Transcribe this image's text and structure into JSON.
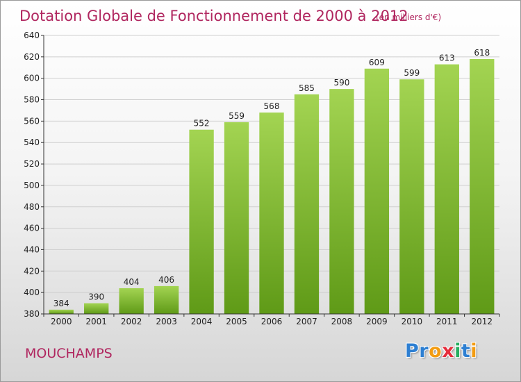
{
  "chart_data": {
    "type": "bar",
    "title": "Dotation Globale de Fonctionnement de 2000 à 2012",
    "subtitle": "(en milliers d'€)",
    "categories": [
      "2000",
      "2001",
      "2002",
      "2003",
      "2004",
      "2005",
      "2006",
      "2007",
      "2008",
      "2009",
      "2010",
      "2011",
      "2012"
    ],
    "values": [
      384,
      390,
      404,
      406,
      552,
      559,
      568,
      585,
      590,
      609,
      599,
      613,
      618
    ],
    "ylim": [
      380,
      640
    ],
    "yticks": [
      380,
      400,
      420,
      440,
      460,
      480,
      500,
      520,
      540,
      560,
      580,
      600,
      620,
      640
    ],
    "grid": true,
    "bar_color_top": "#a3d452",
    "bar_color_bottom": "#5f9a17"
  },
  "commune": "MOUCHAMPS",
  "logo": {
    "text": "Proxiti",
    "letters": [
      {
        "ch": "P",
        "color": "#2d7fd2"
      },
      {
        "ch": "r",
        "color": "#2d7fd2"
      },
      {
        "ch": "o",
        "color": "#f39c12"
      },
      {
        "ch": "x",
        "color": "#e52d3c"
      },
      {
        "ch": "i",
        "color": "#27ae60"
      },
      {
        "ch": "t",
        "color": "#2d7fd2"
      },
      {
        "ch": "i",
        "color": "#f39c12"
      }
    ]
  },
  "colors": {
    "title": "#b0265f",
    "axis": "#333333",
    "grid": "#cfcfcf"
  }
}
